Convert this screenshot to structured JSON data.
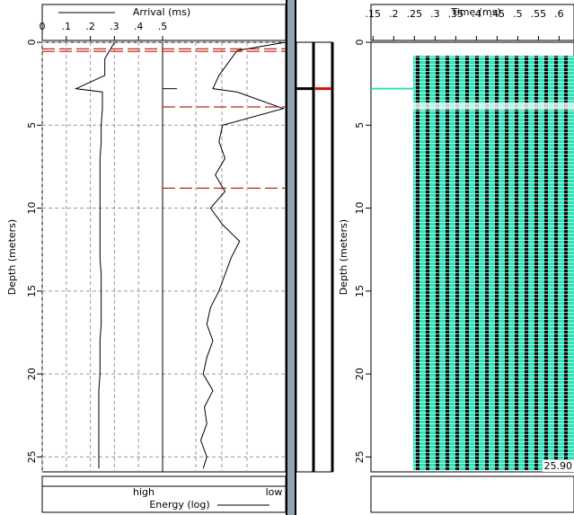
{
  "left_panel": {
    "arrival_label": "Arrival (ms)",
    "xlim": [
      0,
      0.5
    ],
    "xticks": [
      0,
      {
        "value": 0.1,
        "label": ".1"
      },
      {
        "value": 0.2,
        "label": ".2"
      },
      {
        "value": 0.3,
        "label": ".3"
      },
      {
        "value": 0.4,
        "label": ".4"
      },
      {
        "value": 0.5,
        "label": ".5"
      }
    ],
    "depth_label": "Depth (meters)",
    "ylim": [
      0,
      25.9
    ],
    "yticks": [
      0,
      5,
      10,
      15,
      20,
      25
    ],
    "energy_label": "Energy (log)",
    "energy_high": "high",
    "energy_low": "low",
    "energy_lim": [
      0,
      1
    ],
    "depth": [
      0,
      0.5,
      1,
      2,
      2.8,
      3,
      4,
      5,
      6,
      7,
      8,
      9,
      10,
      11,
      12,
      13,
      14,
      15,
      16,
      17,
      18,
      19,
      20,
      21,
      22,
      23,
      24,
      25,
      25.7
    ],
    "arrival": [
      0.3,
      0.28,
      0.26,
      0.26,
      0.14,
      0.25,
      0.25,
      0.245,
      0.245,
      0.24,
      0.24,
      0.24,
      0.24,
      0.24,
      0.24,
      0.24,
      0.245,
      0.245,
      0.245,
      0.245,
      0.24,
      0.24,
      0.24,
      0.235,
      0.235,
      0.235,
      0.235,
      0.235,
      0.235
    ],
    "energy": [
      1.0,
      0.6,
      0.55,
      0.45,
      0.4,
      0.6,
      0.98,
      0.48,
      0.45,
      0.5,
      0.42,
      0.5,
      0.38,
      0.48,
      0.62,
      0.55,
      0.5,
      0.45,
      0.38,
      0.35,
      0.4,
      0.35,
      0.32,
      0.4,
      0.33,
      0.35,
      0.3,
      0.35,
      0.32
    ],
    "picks_arrival": [
      0.4,
      0.55
    ],
    "picks_energy": [
      3.9,
      8.8
    ],
    "marker_depth": 2.8
  },
  "right_panel": {
    "time_label": "Time (ms)",
    "xlim": [
      0.145,
      0.636
    ],
    "xticks": [
      {
        "value": 0.15,
        "label": ".15"
      },
      {
        "value": 0.2,
        "label": ".2"
      },
      {
        "value": 0.25,
        "label": ".25"
      },
      {
        "value": 0.3,
        "label": ".3"
      },
      {
        "value": 0.35,
        "label": ".35"
      },
      {
        "value": 0.4,
        "label": ".4"
      },
      {
        "value": 0.45,
        "label": ".45"
      },
      {
        "value": 0.5,
        "label": ".5"
      },
      {
        "value": 0.55,
        "label": ".55"
      },
      {
        "value": 0.6,
        "label": ".6"
      }
    ],
    "depth_readout": "25.90"
  }
}
